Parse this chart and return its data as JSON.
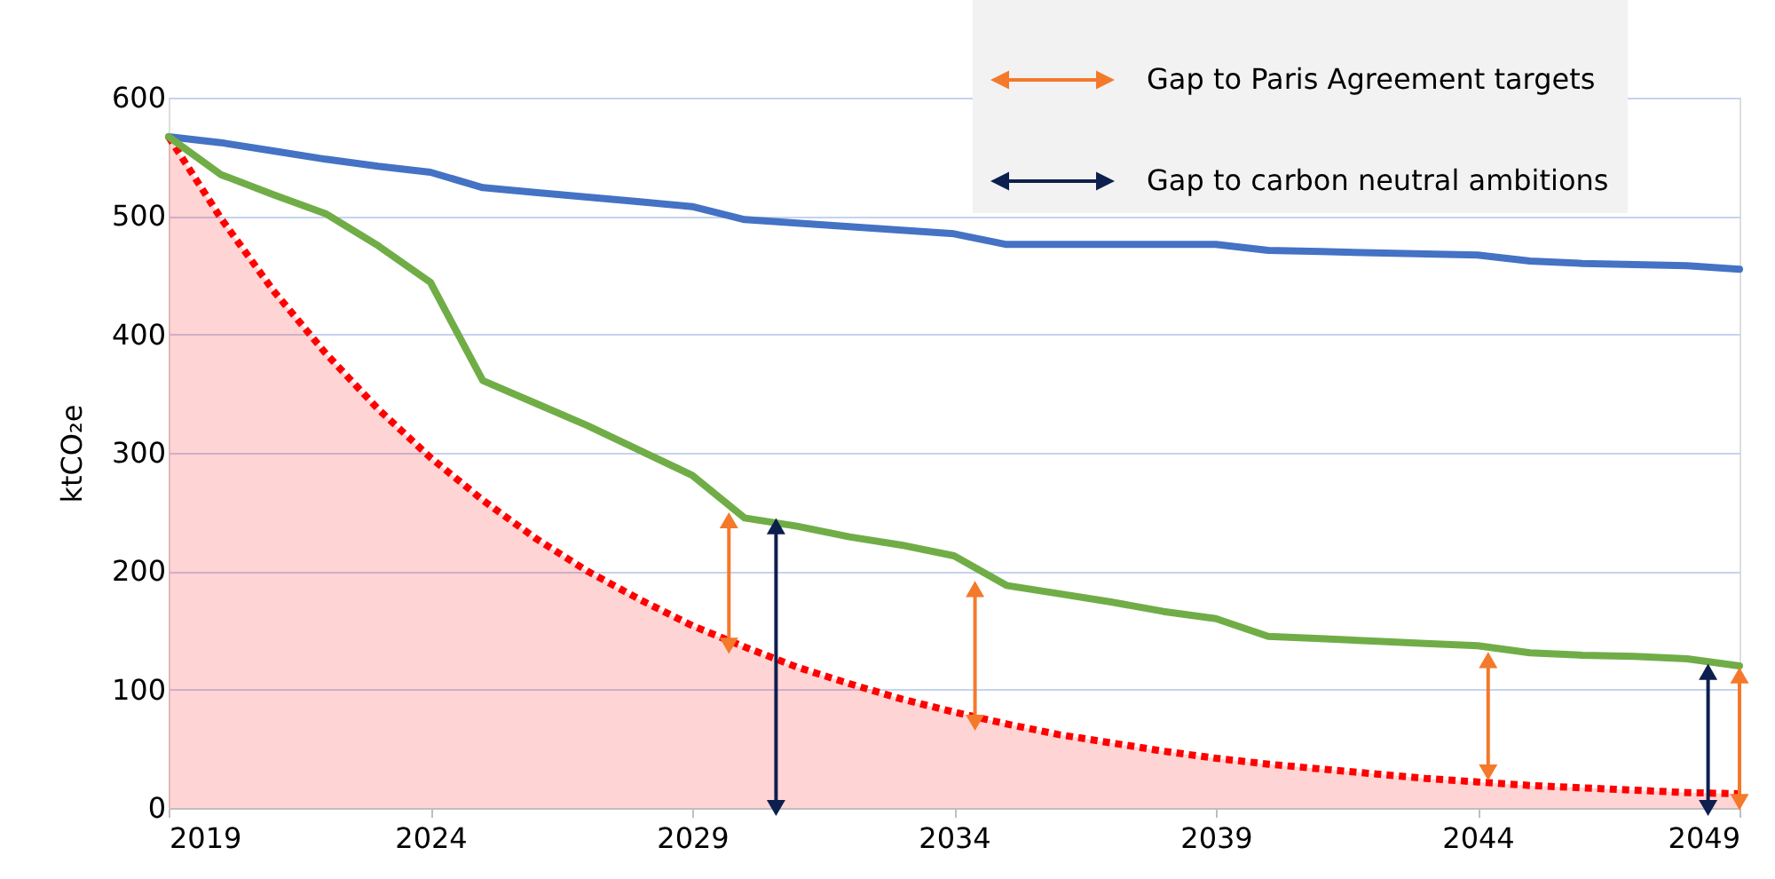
{
  "chart_data": {
    "type": "line",
    "ylabel": "ktCO₂e",
    "x": [
      2019,
      2020,
      2021,
      2022,
      2023,
      2024,
      2025,
      2026,
      2027,
      2028,
      2029,
      2030,
      2031,
      2032,
      2033,
      2034,
      2035,
      2036,
      2037,
      2038,
      2039,
      2040,
      2041,
      2042,
      2043,
      2044,
      2045,
      2046,
      2047,
      2048,
      2049
    ],
    "series": [
      {
        "type": "area",
        "color": "#ff0000",
        "line_style": "dotted",
        "values": [
          567,
          498,
          437,
          384,
          337,
          296,
          260,
          228,
          200,
          176,
          154,
          136,
          119,
          105,
          92,
          81,
          71,
          62,
          55,
          48,
          42,
          37,
          33,
          29,
          25,
          22,
          19,
          17,
          15,
          13,
          12
        ]
      },
      {
        "type": "line",
        "color": "#4472c4",
        "line_style": "solid",
        "values": [
          567,
          562,
          555,
          548,
          542,
          537,
          524,
          520,
          516,
          512,
          508,
          497,
          494,
          491,
          488,
          485,
          476,
          476,
          476,
          476,
          476,
          471,
          470,
          469,
          468,
          467,
          462,
          460,
          459,
          458,
          455
        ]
      },
      {
        "color": "#70ad47",
        "line_style": "solid",
        "values": [
          567,
          535,
          518,
          502,
          475,
          444,
          361,
          342,
          323,
          302,
          281,
          245,
          238,
          229,
          222,
          213,
          188,
          181,
          174,
          166,
          160,
          145,
          143,
          141,
          139,
          137,
          131,
          129,
          128,
          126,
          120
        ]
      },
      {
        "type": "line",
        "name": "Gap to Paris Agreement targets",
        "color": "#f4792b",
        "line_style": "solid",
        "marker": "triangle",
        "x": [
          2029.7,
          2029.7,
          null,
          2034.4,
          2034.4,
          null,
          2044.2,
          2044.2,
          null,
          2049,
          2049
        ],
        "values": [
          243,
          137,
          null,
          185,
          72,
          null,
          125,
          30,
          null,
          112,
          5
        ]
      },
      {
        "name": "Gap to carbon neutral ambitions",
        "color": "#0d1f4e",
        "line_style": "solid",
        "marker": "triangle",
        "x": [
          2030.6,
          2030.6,
          null,
          2048.4,
          2048.4
        ],
        "values": [
          238,
          0,
          null,
          115,
          0
        ]
      }
    ],
    "xlim": [
      2019,
      2049
    ],
    "xticks": [
      2019,
      2024,
      2029,
      2034,
      2039,
      2044,
      2049
    ],
    "ylim": [
      0,
      600
    ],
    "yticks": [
      0,
      100,
      200,
      300,
      400,
      500,
      600
    ],
    "grid": "y",
    "legend": "top right"
  }
}
